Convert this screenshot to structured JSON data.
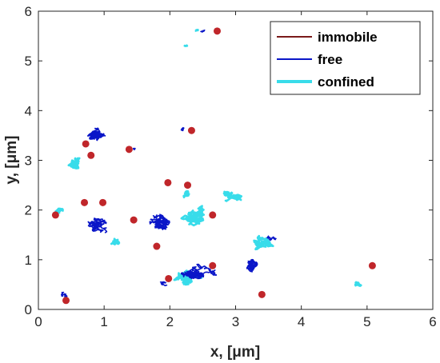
{
  "chart_data": {
    "type": "scatter",
    "title": "",
    "xlabel": "x, [μm]",
    "ylabel": "y, [μm]",
    "xlim": [
      0,
      6
    ],
    "ylim": [
      0,
      6
    ],
    "xticks": [
      "0",
      "1",
      "2",
      "3",
      "4",
      "5",
      "6"
    ],
    "yticks": [
      "0",
      "1",
      "2",
      "3",
      "4",
      "5",
      "6"
    ],
    "grid": false,
    "legend_position": "top-right",
    "colors": {
      "immobile": "#7a1a1a",
      "free": "#0a16c8",
      "confined": "#38dcea",
      "marker": "#c0262a"
    },
    "series": [
      {
        "name": "immobile",
        "mode": "line"
      },
      {
        "name": "free",
        "mode": "line"
      },
      {
        "name": "confined",
        "mode": "line"
      }
    ],
    "trajectories": [
      {
        "type": "free",
        "center": [
          0.85,
          3.5
        ],
        "spread": [
          0.38,
          0.22
        ],
        "steps": 220,
        "seed": 11
      },
      {
        "type": "confined",
        "center": [
          0.6,
          2.95
        ],
        "spread": [
          0.3,
          0.2
        ],
        "steps": 140,
        "seed": 12
      },
      {
        "type": "free",
        "center": [
          2.2,
          3.62
        ],
        "spread": [
          0.12,
          0.04
        ],
        "steps": 40,
        "seed": 13
      },
      {
        "type": "free",
        "center": [
          1.45,
          3.22
        ],
        "spread": [
          0.08,
          0.04
        ],
        "steps": 30,
        "seed": 14
      },
      {
        "type": "confined",
        "center": [
          0.3,
          2.0
        ],
        "spread": [
          0.12,
          0.18
        ],
        "steps": 60,
        "seed": 15
      },
      {
        "type": "free",
        "center": [
          0.9,
          1.7
        ],
        "spread": [
          0.28,
          0.4
        ],
        "steps": 180,
        "seed": 16
      },
      {
        "type": "confined",
        "center": [
          1.2,
          1.35
        ],
        "spread": [
          0.22,
          0.18
        ],
        "steps": 90,
        "seed": 17
      },
      {
        "type": "free",
        "center": [
          1.85,
          1.75
        ],
        "spread": [
          0.3,
          0.42
        ],
        "steps": 240,
        "seed": 18
      },
      {
        "type": "confined",
        "center": [
          2.4,
          1.9
        ],
        "spread": [
          0.5,
          0.25
        ],
        "steps": 200,
        "seed": 19
      },
      {
        "type": "confined",
        "center": [
          2.9,
          2.25
        ],
        "spread": [
          0.4,
          0.15
        ],
        "steps": 80,
        "seed": 20
      },
      {
        "type": "free",
        "center": [
          2.4,
          0.72
        ],
        "spread": [
          0.5,
          0.15
        ],
        "steps": 200,
        "seed": 21
      },
      {
        "type": "confined",
        "center": [
          2.3,
          0.65
        ],
        "spread": [
          0.6,
          0.12
        ],
        "steps": 150,
        "seed": 22
      },
      {
        "type": "free",
        "center": [
          3.25,
          0.9
        ],
        "spread": [
          0.25,
          0.3
        ],
        "steps": 200,
        "seed": 23
      },
      {
        "type": "confined",
        "center": [
          3.4,
          1.35
        ],
        "spread": [
          0.4,
          0.15
        ],
        "steps": 140,
        "seed": 24
      },
      {
        "type": "free",
        "center": [
          3.55,
          1.45
        ],
        "spread": [
          0.22,
          0.06
        ],
        "steps": 50,
        "seed": 25
      },
      {
        "type": "free",
        "center": [
          0.38,
          0.3
        ],
        "spread": [
          0.12,
          0.12
        ],
        "steps": 60,
        "seed": 26
      },
      {
        "type": "confined",
        "center": [
          4.85,
          0.5
        ],
        "spread": [
          0.15,
          0.18
        ],
        "steps": 40,
        "seed": 27
      },
      {
        "type": "confined",
        "center": [
          2.4,
          5.62
        ],
        "spread": [
          0.08,
          0.04
        ],
        "steps": 25,
        "seed": 28
      },
      {
        "type": "free",
        "center": [
          2.5,
          5.6
        ],
        "spread": [
          0.1,
          0.03
        ],
        "steps": 25,
        "seed": 29
      },
      {
        "type": "confined",
        "center": [
          2.25,
          5.32
        ],
        "spread": [
          0.1,
          0.02
        ],
        "steps": 12,
        "seed": 30
      },
      {
        "type": "confined",
        "center": [
          2.3,
          2.35
        ],
        "spread": [
          0.25,
          0.08
        ],
        "steps": 40,
        "seed": 31
      },
      {
        "type": "free",
        "center": [
          1.9,
          0.55
        ],
        "spread": [
          0.2,
          0.06
        ],
        "steps": 40,
        "seed": 32
      },
      {
        "type": "free",
        "center": [
          2.65,
          0.75
        ],
        "spread": [
          0.2,
          0.1
        ],
        "steps": 50,
        "seed": 33
      }
    ],
    "markers": [
      [
        2.72,
        5.6
      ],
      [
        2.33,
        3.6
      ],
      [
        1.38,
        3.22
      ],
      [
        0.72,
        3.33
      ],
      [
        0.8,
        3.1
      ],
      [
        1.97,
        2.55
      ],
      [
        2.27,
        2.5
      ],
      [
        0.7,
        2.15
      ],
      [
        0.26,
        1.9
      ],
      [
        1.45,
        1.8
      ],
      [
        2.65,
        1.9
      ],
      [
        1.8,
        1.27
      ],
      [
        1.98,
        0.62
      ],
      [
        2.65,
        0.88
      ],
      [
        5.08,
        0.88
      ],
      [
        0.42,
        0.18
      ],
      [
        3.4,
        0.3
      ],
      [
        0.98,
        2.15
      ]
    ]
  }
}
